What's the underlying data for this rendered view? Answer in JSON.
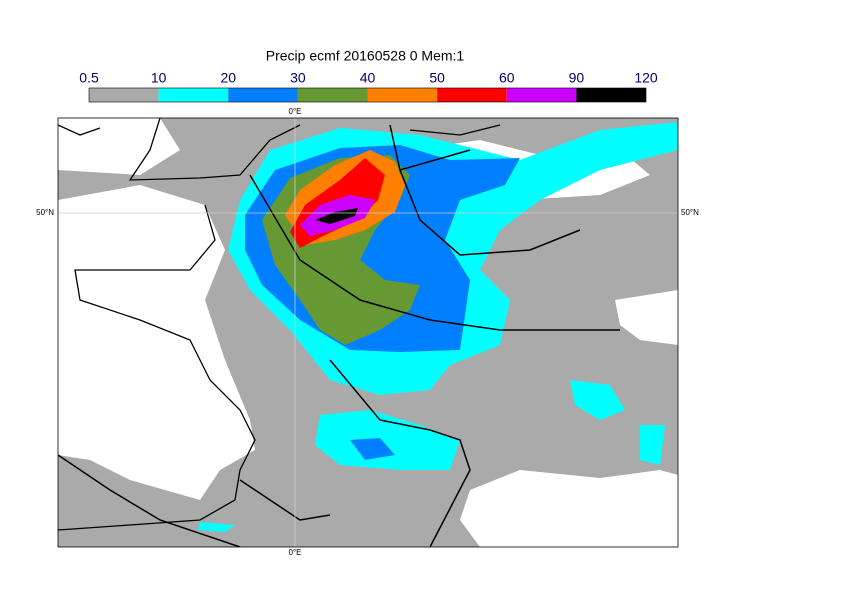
{
  "title": "Precip ecmf 20160528 0 Mem:1",
  "colorbar": {
    "levels": [
      0.5,
      10,
      20,
      30,
      40,
      50,
      60,
      90,
      120
    ],
    "colors": [
      "#aaaaaa",
      "#00ffff",
      "#0080ff",
      "#669933",
      "#ff8000",
      "#ff0000",
      "#cc00ff",
      "#000000"
    ]
  },
  "graticule": {
    "meridian_label": "0°E",
    "parallel_label": "50°N"
  }
}
